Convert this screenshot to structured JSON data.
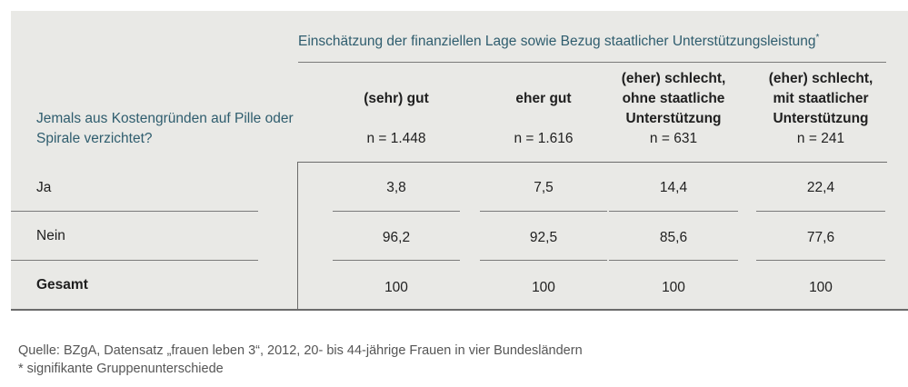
{
  "group_title": "Einschätzung der finanziellen Lage sowie Bezug staatlicher Unterstützungsleistung",
  "group_title_mark": "*",
  "row_question": "Jemals aus Kostengründen auf Pille oder Spirale verzichtet?",
  "columns": [
    {
      "label": "(sehr) gut",
      "n": "n = 1.448"
    },
    {
      "label": "eher gut",
      "n": "n = 1.616"
    },
    {
      "label": "(eher) schlecht, ohne staatliche Unterstützung",
      "n": "n = 631"
    },
    {
      "label": "(eher) schlecht, mit staatlicher Unterstützung",
      "n": "n = 241"
    }
  ],
  "rows": [
    {
      "label": "Ja",
      "values": [
        "3,8",
        "7,5",
        "14,4",
        "22,4"
      ]
    },
    {
      "label": "Nein",
      "values": [
        "96,2",
        "92,5",
        "85,6",
        "77,6"
      ]
    },
    {
      "label": "Gesamt",
      "values": [
        "100",
        "100",
        "100",
        "100"
      ]
    }
  ],
  "source_line": "Quelle: BZgA, Datensatz „frauen leben 3“, 2012, 20- bis 44-jährige Frauen in vier Bundesländern",
  "footnote": "* signifikante Gruppenunterschiede"
}
